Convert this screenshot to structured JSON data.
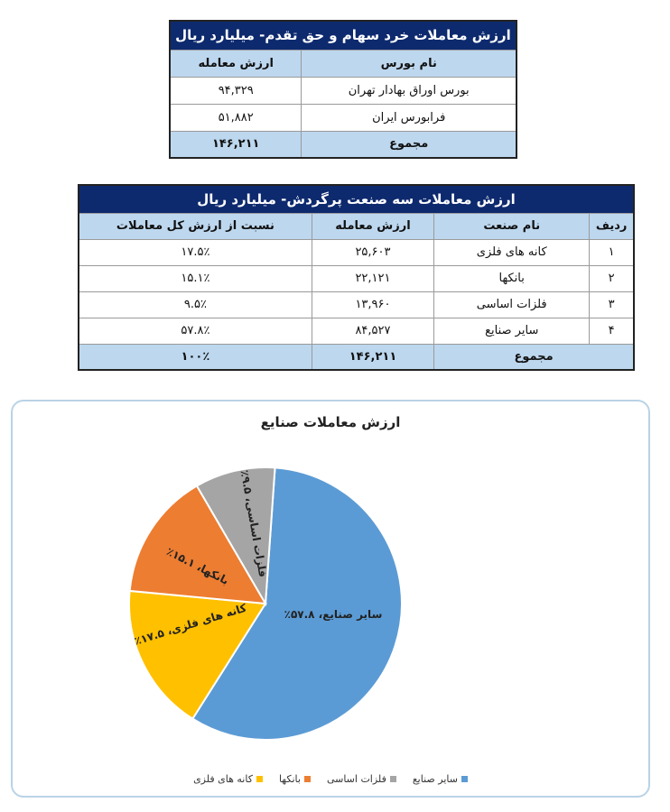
{
  "table1": {
    "title": "ارزش معاملات خرد سهام و حق تقدم- میلیارد ریال",
    "headers": [
      "نام بورس",
      "ارزش معامله"
    ],
    "rows": [
      [
        "بورس اوراق بهادار تهران",
        "۹۴,۳۲۹"
      ],
      [
        "فرابورس ایران",
        "۵۱,۸۸۲"
      ]
    ],
    "total": [
      "مجموع",
      "۱۴۶,۲۱۱"
    ]
  },
  "table2": {
    "title": "ارزش معاملات سه صنعت پرگردش- میلیارد ریال",
    "headers": [
      "ردیف",
      "نام صنعت",
      "ارزش معامله",
      "نسبت از ارزش کل معاملات"
    ],
    "rows": [
      [
        "۱",
        "کانه های فلزی",
        "۲۵,۶۰۳",
        "۱۷.۵٪"
      ],
      [
        "۲",
        "بانکها",
        "۲۲,۱۲۱",
        "۱۵.۱٪"
      ],
      [
        "۳",
        "فلزات اساسی",
        "۱۳,۹۶۰",
        "۹.۵٪"
      ],
      [
        "۴",
        "سایر صنایع",
        "۸۴,۵۲۷",
        "۵۷.۸٪"
      ]
    ],
    "total": [
      "مجموع",
      "۱۴۶,۲۱۱",
      "۱۰۰٪"
    ]
  },
  "chart_data": {
    "type": "pie",
    "title": "ارزش معاملات صنایع",
    "categories": [
      "سایر صنایع",
      "کانه های فلزی",
      "بانکها",
      "فلزات اساسی"
    ],
    "values": [
      57.8,
      17.5,
      15.1,
      9.5
    ],
    "colors": [
      "#5b9bd5",
      "#ffc000",
      "#ed7d31",
      "#a5a5a5"
    ],
    "data_labels": [
      "سایر صنایع، ۵۷.۸٪",
      "کانه های فلزی، ۱۷.۵٪",
      "بانکها، ۱۵.۱٪",
      "فلزات اساسی، ۹.۵٪"
    ],
    "legend": [
      "سایر صنایع",
      "فلزات اساسی",
      "بانکها",
      "کانه های فلزی"
    ],
    "legend_colors": [
      "#5b9bd5",
      "#a5a5a5",
      "#ed7d31",
      "#ffc000"
    ],
    "legend_placement": "bottom"
  }
}
